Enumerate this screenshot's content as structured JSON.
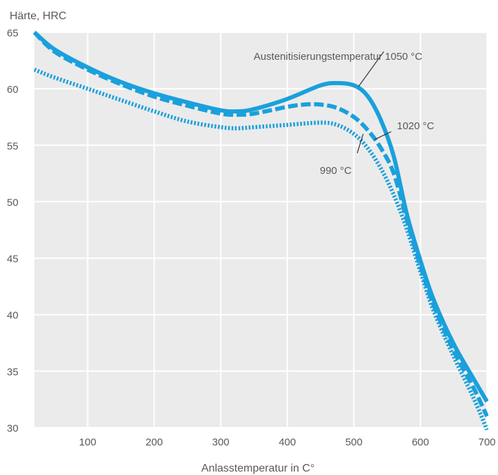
{
  "chart_data": {
    "type": "line",
    "ylabel": "Härte, HRC",
    "xlabel": "Anlasstemperatur in C°",
    "xlim": [
      20,
      700
    ],
    "ylim": [
      30,
      65
    ],
    "x_ticks": [
      100,
      200,
      300,
      400,
      500,
      600,
      700
    ],
    "y_ticks": [
      30,
      35,
      40,
      45,
      50,
      55,
      60,
      65
    ],
    "grid": true,
    "colors": {
      "series": "#1aa0dc",
      "plot_bg": "#ebebeb",
      "grid": "#ffffff",
      "annotation_line": "#333333"
    },
    "series": [
      {
        "label": "Austenitisierungstemperatur 1050 °C",
        "style": "solid",
        "x": [
          20,
          50,
          100,
          150,
          200,
          250,
          300,
          325,
          350,
          400,
          450,
          475,
          500,
          520,
          540,
          560,
          580,
          600,
          620,
          650,
          680,
          700
        ],
        "y": [
          65,
          63.5,
          61.9,
          60.6,
          59.6,
          58.8,
          58.1,
          58.0,
          58.2,
          59.1,
          60.3,
          60.5,
          60.3,
          59.4,
          57.3,
          54.0,
          48.8,
          44.8,
          41.3,
          37.4,
          34.3,
          32.3
        ]
      },
      {
        "label": "1020 °C",
        "style": "dashed",
        "x": [
          20,
          50,
          100,
          150,
          200,
          250,
          300,
          325,
          350,
          400,
          425,
          450,
          475,
          500,
          520,
          540,
          560,
          580,
          600,
          620,
          650,
          680,
          700
        ],
        "y": [
          65,
          63.3,
          61.7,
          60.4,
          59.3,
          58.5,
          57.8,
          57.7,
          57.8,
          58.4,
          58.6,
          58.6,
          58.3,
          57.5,
          56.4,
          54.8,
          52.5,
          48.3,
          44.3,
          40.8,
          36.8,
          33.5,
          31.0
        ]
      },
      {
        "label": "990 °C",
        "style": "dotted",
        "x": [
          20,
          50,
          100,
          150,
          200,
          250,
          300,
          325,
          350,
          400,
          450,
          475,
          500,
          520,
          540,
          560,
          580,
          600,
          620,
          650,
          680,
          700
        ],
        "y": [
          61.7,
          61.0,
          60.0,
          59.0,
          58.0,
          57.1,
          56.6,
          56.5,
          56.6,
          56.8,
          57.0,
          56.8,
          56.0,
          54.8,
          53.0,
          50.6,
          47.5,
          43.8,
          40.3,
          36.3,
          32.6,
          29.8
        ]
      }
    ],
    "annotations": [
      {
        "text": "Austenitisierungstemperatur 1050 °C",
        "series": 0
      },
      {
        "text": "1020 °C",
        "series": 1
      },
      {
        "text": "990 °C",
        "series": 2
      }
    ]
  }
}
